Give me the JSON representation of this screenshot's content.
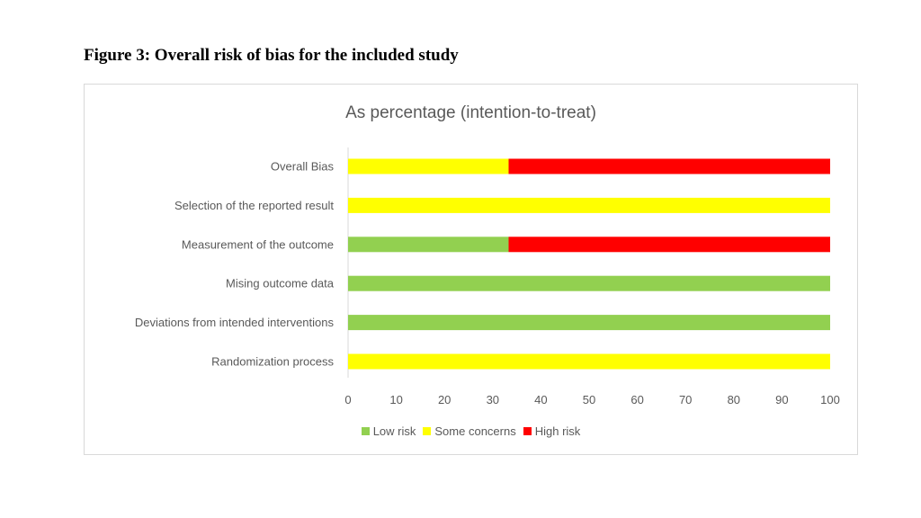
{
  "figure_title": "Figure 3: Overall risk of bias for the included study",
  "colors": {
    "low": "#92d050",
    "some": "#ffff00",
    "high": "#ff0000"
  },
  "chart_data": {
    "type": "bar",
    "orientation": "horizontal",
    "stacked": true,
    "title": "As percentage (intention-to-treat)",
    "categories": [
      "Overall Bias",
      "Selection of the reported result",
      "Measurement of the outcome",
      "Mising outcome data",
      "Deviations from intended interventions",
      "Randomization process"
    ],
    "series": [
      {
        "name": "Low risk",
        "color": "#92d050",
        "values": [
          0,
          0,
          33.3,
          100,
          100,
          0
        ]
      },
      {
        "name": "Some concerns",
        "color": "#ffff00",
        "values": [
          33.3,
          100,
          0,
          0,
          0,
          100
        ]
      },
      {
        "name": "High risk",
        "color": "#ff0000",
        "values": [
          66.7,
          0,
          66.7,
          0,
          0,
          0
        ]
      }
    ],
    "xlim": [
      0,
      100
    ],
    "xticks": [
      0,
      10,
      20,
      30,
      40,
      50,
      60,
      70,
      80,
      90,
      100
    ],
    "grid": false,
    "legend": "bottom"
  }
}
